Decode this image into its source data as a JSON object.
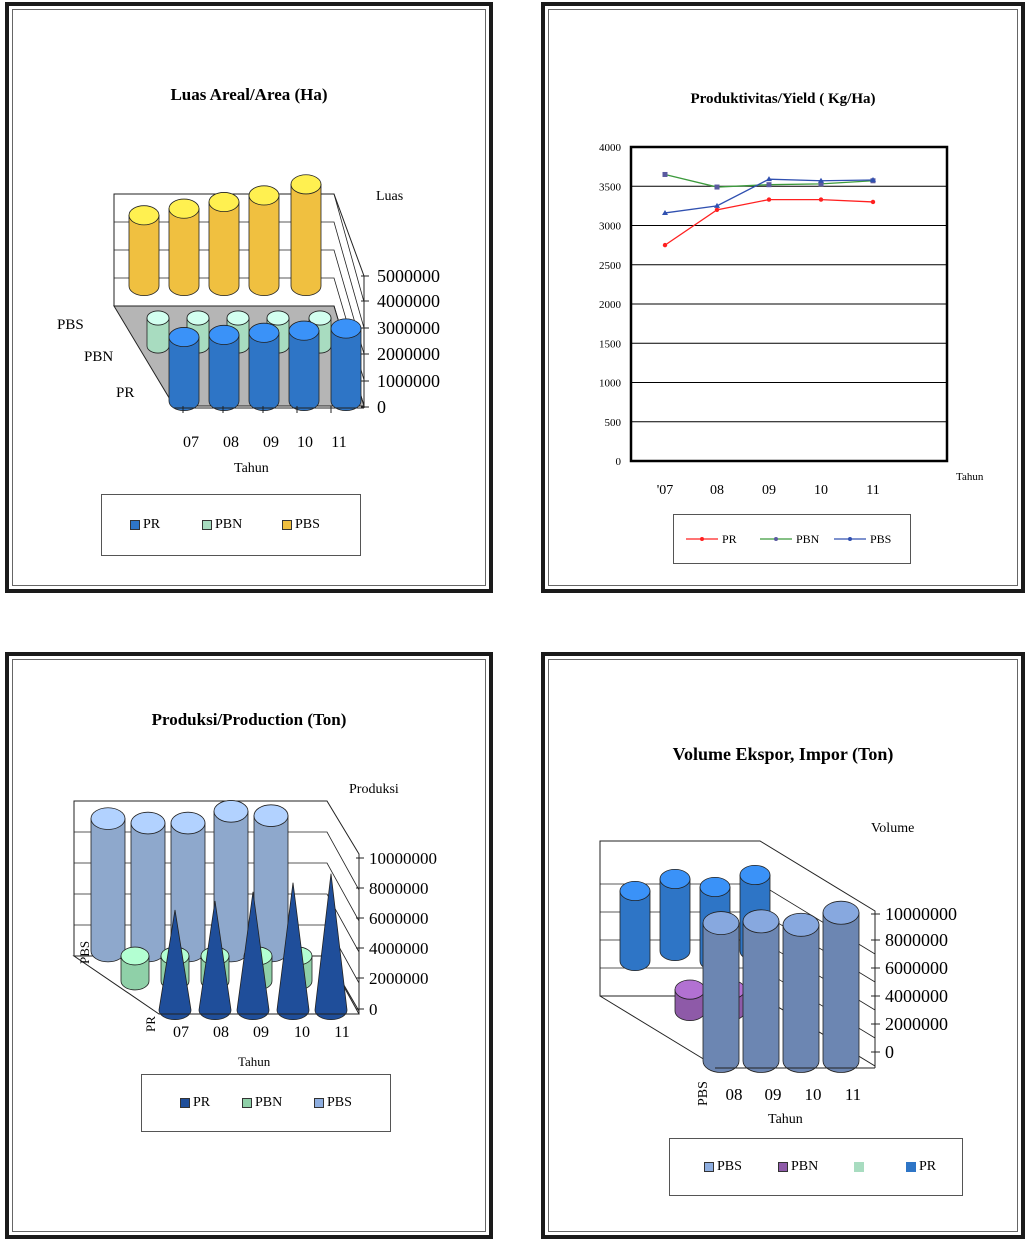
{
  "colors": {
    "pr": "#2e75c6",
    "pbn": "#a8dcc0",
    "pbs": "#f0c040",
    "pbs_blue": "#8eaee0",
    "pbn_purple": "#8e5aa8",
    "line_pr": "#ff2020",
    "line_pbn": "#3c9a3c",
    "line_pbs": "#3050b0"
  },
  "chart_data": [
    {
      "type": "bar",
      "title": "Luas Areal/Area (Ha)",
      "zlabel": "Luas",
      "xlabel": "Tahun",
      "categories": [
        "07",
        "08",
        "09",
        "10",
        "11"
      ],
      "depth_labels": [
        "PBS",
        "PBN",
        "PR"
      ],
      "y_ticks": [
        "5000000",
        "4000000",
        "3000000",
        "2000000",
        "1000000",
        "0"
      ],
      "ylim": [
        0,
        5000000
      ],
      "series": [
        {
          "name": "PR",
          "values": [
            3000000,
            3100000,
            3200000,
            3300000,
            3400000
          ]
        },
        {
          "name": "PBN",
          "values": [
            700000,
            700000,
            700000,
            700000,
            700000
          ]
        },
        {
          "name": "PBS",
          "values": [
            3200000,
            3500000,
            3800000,
            4100000,
            4600000
          ]
        }
      ],
      "legend": [
        "PR",
        "PBN",
        "PBS"
      ]
    },
    {
      "type": "line",
      "title": "Produktivitas/Yield ( Kg/Ha)",
      "xlabel": "Tahun",
      "categories": [
        "'07",
        "08",
        "09",
        "10",
        "11"
      ],
      "ylim": [
        0,
        4000
      ],
      "y_ticks": [
        "4000",
        "3500",
        "3000",
        "2500",
        "2000",
        "1500",
        "1000",
        "500",
        "0"
      ],
      "grid": true,
      "series": [
        {
          "name": "PR",
          "values": [
            2750,
            3200,
            3330,
            3330,
            3300
          ]
        },
        {
          "name": "PBN",
          "values": [
            3650,
            3490,
            3520,
            3530,
            3570
          ]
        },
        {
          "name": "PBS",
          "values": [
            3160,
            3250,
            3590,
            3570,
            3580
          ]
        }
      ],
      "legend": [
        "PR",
        "PBN",
        "PBS"
      ]
    },
    {
      "type": "bar",
      "title": "Produksi/Production (Ton)",
      "zlabel": "Produksi",
      "xlabel": "Tahun",
      "categories": [
        "07",
        "08",
        "09",
        "10",
        "11"
      ],
      "depth_labels": [
        "PBS",
        "PR"
      ],
      "y_ticks": [
        "10000000",
        "8000000",
        "6000000",
        "4000000",
        "2000000",
        "0"
      ],
      "ylim": [
        0,
        10000000
      ],
      "series": [
        {
          "name": "PR",
          "values": [
            5500000,
            6000000,
            6500000,
            7000000,
            7500000
          ]
        },
        {
          "name": "PBN",
          "values": [
            1500000,
            1500000,
            1500000,
            1500000,
            1500000
          ]
        },
        {
          "name": "PBS",
          "values": [
            9000000,
            8700000,
            8700000,
            9500000,
            9200000
          ]
        }
      ],
      "legend": [
        "PR",
        "PBN",
        "PBS"
      ]
    },
    {
      "type": "bar",
      "title": "Volume Ekspor,  Impor (Ton)",
      "zlabel": "Volume",
      "xlabel": "Tahun",
      "categories": [
        "08",
        "09",
        "10",
        "11"
      ],
      "depth_labels": [
        "PBS"
      ],
      "y_ticks": [
        "10000000",
        "8000000",
        "6000000",
        "4000000",
        "2000000",
        "0"
      ],
      "ylim": [
        0,
        10000000
      ],
      "series": [
        {
          "name": "PBS",
          "values": [
            8000000,
            8100000,
            7900000,
            8600000
          ]
        },
        {
          "name": "PBN",
          "values": [
            1500000,
            1500000,
            0,
            0
          ]
        },
        {
          "name": "PR",
          "values": [
            7000000,
            7200000,
            7400000,
            7600000
          ]
        }
      ],
      "legend": [
        "PBS",
        "PBN",
        "",
        "PR"
      ]
    }
  ]
}
